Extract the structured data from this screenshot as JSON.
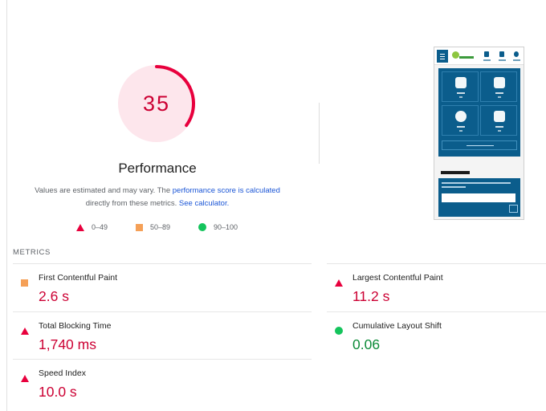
{
  "performance": {
    "score": "35",
    "score_fraction": 0.35,
    "title": "Performance",
    "note_text_1": "Values are estimated and may vary. The ",
    "note_link_1": "performance score is calculated",
    "note_text_2": "directly from these metrics. ",
    "note_link_2": "See calculator.",
    "colors": {
      "fail": "#e8003d",
      "fail_text": "#cc0033",
      "average": "#f5a057",
      "pass": "#14c45c",
      "pass_text": "#0c8b38",
      "gauge_bg": "#fde6ec"
    }
  },
  "legend": [
    {
      "icon": "triangle-icon",
      "label": "0–49"
    },
    {
      "icon": "square-icon",
      "label": "50–89"
    },
    {
      "icon": "circle-icon",
      "label": "90–100"
    }
  ],
  "screenshot": {
    "heading": "What's new"
  },
  "metrics": {
    "heading": "METRICS",
    "fcp": {
      "name": "First Contentful Paint",
      "value": "2.6 s",
      "rating": "average"
    },
    "lcp": {
      "name": "Largest Contentful Paint",
      "value": "11.2 s",
      "rating": "fail"
    },
    "tbt": {
      "name": "Total Blocking Time",
      "value": "1,740 ms",
      "rating": "fail"
    },
    "cls": {
      "name": "Cumulative Layout Shift",
      "value": "0.06",
      "rating": "pass"
    },
    "si": {
      "name": "Speed Index",
      "value": "10.0 s",
      "rating": "fail"
    }
  }
}
